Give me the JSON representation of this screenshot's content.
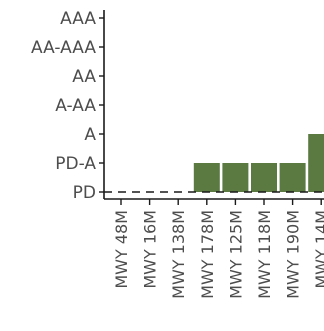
{
  "chart_data": {
    "type": "bar",
    "title": "",
    "xlabel": "",
    "ylabel": "",
    "y_levels": [
      "PD",
      "PD-A",
      "A",
      "A-AA",
      "AA",
      "AA-AAA",
      "AAA"
    ],
    "ylim": [
      0,
      6
    ],
    "categories": [
      "MWY 48M",
      "MWY 16M",
      "MWY 138M",
      "MWY 178M",
      "MWY 125M",
      "MWY 118M",
      "MWY 190M",
      "MWY 14M"
    ],
    "values": [
      0,
      0,
      0,
      1,
      1,
      1,
      1,
      2
    ],
    "bar_color": "#5a7a42",
    "reference_line": {
      "value": 0,
      "style": "dashed",
      "color": "#1a1a1a"
    },
    "grid": false,
    "legend": "none"
  }
}
